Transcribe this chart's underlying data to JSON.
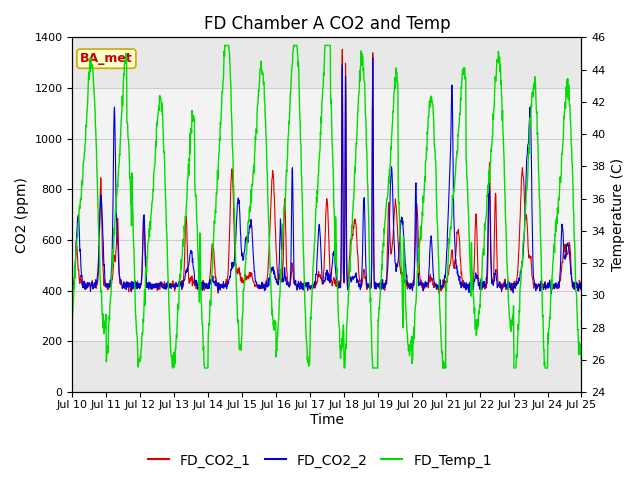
{
  "title": "FD Chamber A CO2 and Temp",
  "xlabel": "Time",
  "ylabel_left": "CO2 (ppm)",
  "ylabel_right": "Temperature (C)",
  "annotation": "BA_met",
  "ylim_left": [
    0,
    1400
  ],
  "ylim_right": [
    24,
    46
  ],
  "yticks_left": [
    0,
    200,
    400,
    600,
    800,
    1000,
    1200,
    1400
  ],
  "yticks_right": [
    24,
    26,
    28,
    30,
    32,
    34,
    36,
    38,
    40,
    42,
    44,
    46
  ],
  "xtick_labels": [
    "Jul 10",
    "Jul 11",
    "Jul 12",
    "Jul 13",
    "Jul 14",
    "Jul 15",
    "Jul 16",
    "Jul 17",
    "Jul 18",
    "Jul 19",
    "Jul 20",
    "Jul 21",
    "Jul 22",
    "Jul 23",
    "Jul 24",
    "Jul 25"
  ],
  "n_days": 15,
  "grid_color": "#cccccc",
  "bg_color": "#e8e8e8",
  "band_low": 200,
  "band_high": 1200,
  "band_color": "#d8d8d8",
  "line_color_co2_1": "#dd0000",
  "line_color_co2_2": "#0000dd",
  "line_color_temp": "#00dd00",
  "legend_labels": [
    "FD_CO2_1",
    "FD_CO2_2",
    "FD_Temp_1"
  ],
  "title_fontsize": 12,
  "axis_label_fontsize": 10,
  "tick_fontsize": 8,
  "legend_fontsize": 10,
  "annotation_fontsize": 9
}
